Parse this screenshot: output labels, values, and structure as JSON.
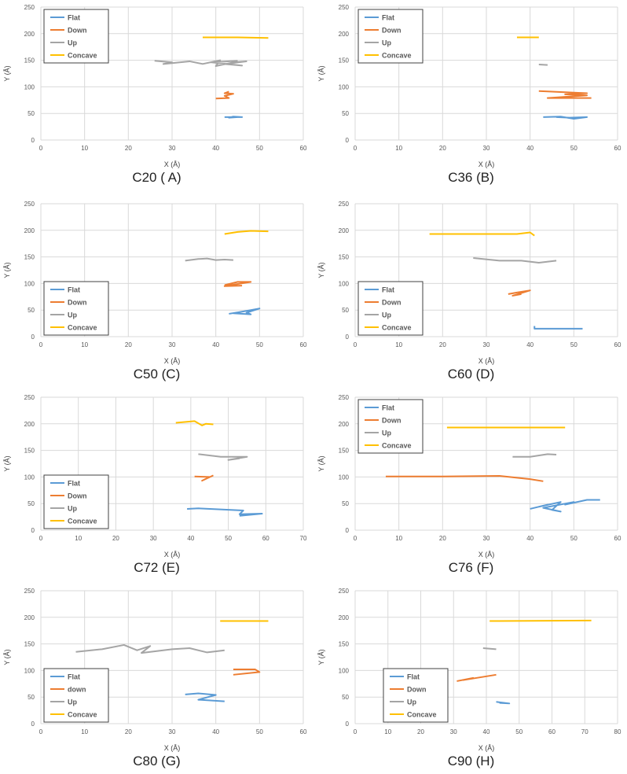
{
  "colors": {
    "Flat": "#5b9bd5",
    "Down": "#ed7d31",
    "Up": "#a5a5a5",
    "Concave": "#ffc000"
  },
  "chart_data": [
    {
      "type": "line",
      "title": "C20 ( A)",
      "xlabel": "X (Å)",
      "ylabel": "Y (Å)",
      "xlim": [
        0,
        60
      ],
      "ylim": [
        0,
        250
      ],
      "xticks": [
        0,
        10,
        20,
        30,
        40,
        50,
        60
      ],
      "yticks": [
        0,
        50,
        100,
        150,
        200,
        250
      ],
      "legend": "top-left",
      "series": [
        {
          "name": "Flat",
          "points": [
            [
              42,
              43
            ],
            [
              46,
              43
            ],
            [
              44,
              44
            ],
            [
              43,
              42
            ],
            [
              45,
              43
            ]
          ]
        },
        {
          "name": "Down",
          "points": [
            [
              40,
              78
            ],
            [
              43,
              79
            ],
            [
              42,
              83
            ],
            [
              44,
              87
            ],
            [
              42,
              88
            ],
            [
              43,
              91
            ]
          ]
        },
        {
          "name": "Up",
          "points": [
            [
              26,
              149
            ],
            [
              30,
              146
            ],
            [
              28,
              143
            ],
            [
              34,
              148
            ],
            [
              37,
              143
            ],
            [
              41,
              150
            ],
            [
              40,
              139
            ],
            [
              44,
              146
            ],
            [
              47,
              148
            ],
            [
              42,
              143
            ],
            [
              46,
              140
            ],
            [
              39,
              146
            ],
            [
              45,
              149
            ]
          ]
        },
        {
          "name": "Concave",
          "points": [
            [
              37,
              193
            ],
            [
              45,
              193
            ],
            [
              52,
              192
            ]
          ]
        }
      ]
    },
    {
      "type": "line",
      "title": "C36 (B)",
      "xlabel": "X (Å)",
      "ylabel": "Y (Å)",
      "xlim": [
        0,
        60
      ],
      "ylim": [
        0,
        250
      ],
      "xticks": [
        0,
        10,
        20,
        30,
        40,
        50,
        60
      ],
      "yticks": [
        0,
        50,
        100,
        150,
        200,
        250
      ],
      "legend": "top-left",
      "series": [
        {
          "name": "Flat",
          "points": [
            [
              43,
              43
            ],
            [
              47,
              44
            ],
            [
              50,
              40
            ],
            [
              53,
              43
            ],
            [
              49,
              42
            ],
            [
              46,
              43
            ]
          ]
        },
        {
          "name": "Down",
          "points": [
            [
              42,
              92
            ],
            [
              53,
              88
            ],
            [
              48,
              86
            ],
            [
              53,
              84
            ],
            [
              44,
              79
            ],
            [
              54,
              79
            ]
          ]
        },
        {
          "name": "Up",
          "points": [
            [
              42,
              142
            ],
            [
              44,
              141
            ]
          ]
        },
        {
          "name": "Concave",
          "points": [
            [
              37,
              193
            ],
            [
              42,
              193
            ]
          ]
        }
      ]
    },
    {
      "type": "line",
      "title": "C50 (C)",
      "xlabel": "X (Å)",
      "ylabel": "Y (Å)",
      "xlim": [
        0,
        60
      ],
      "ylim": [
        0,
        250
      ],
      "xticks": [
        0,
        10,
        20,
        30,
        40,
        50,
        60
      ],
      "yticks": [
        0,
        50,
        100,
        150,
        200,
        250
      ],
      "legend": "bottom-left",
      "series": [
        {
          "name": "Flat",
          "points": [
            [
              43,
              43
            ],
            [
              46,
              47
            ],
            [
              50,
              53
            ],
            [
              47,
              45
            ],
            [
              48,
              42
            ],
            [
              44,
              44
            ]
          ]
        },
        {
          "name": "Down",
          "points": [
            [
              42,
              97
            ],
            [
              45,
              103
            ],
            [
              48,
              103
            ],
            [
              42,
              95
            ],
            [
              46,
              96
            ]
          ]
        },
        {
          "name": "Up",
          "points": [
            [
              33,
              143
            ],
            [
              36,
              146
            ],
            [
              38,
              147
            ],
            [
              40,
              144
            ],
            [
              42,
              145
            ],
            [
              44,
              144
            ]
          ]
        },
        {
          "name": "Concave",
          "points": [
            [
              42,
              193
            ],
            [
              45,
              197
            ],
            [
              48,
              199
            ],
            [
              52,
              198
            ]
          ]
        }
      ]
    },
    {
      "type": "line",
      "title": "C60 (D)",
      "xlabel": "X (Å)",
      "ylabel": "Y (Å)",
      "xlim": [
        0,
        60
      ],
      "ylim": [
        0,
        250
      ],
      "xticks": [
        0,
        10,
        20,
        30,
        40,
        50,
        60
      ],
      "yticks": [
        0,
        50,
        100,
        150,
        200,
        250
      ],
      "legend": "bottom-left",
      "series": [
        {
          "name": "Flat",
          "points": [
            [
              41,
              20
            ],
            [
              41,
              15
            ],
            [
              52,
              15
            ]
          ]
        },
        {
          "name": "Down",
          "points": [
            [
              35,
              80
            ],
            [
              37,
              83
            ],
            [
              40,
              87
            ],
            [
              36,
              77
            ],
            [
              38,
              80
            ]
          ]
        },
        {
          "name": "Up",
          "points": [
            [
              27,
              148
            ],
            [
              33,
              143
            ],
            [
              38,
              143
            ],
            [
              42,
              139
            ],
            [
              46,
              143
            ]
          ]
        },
        {
          "name": "Concave",
          "points": [
            [
              17,
              193
            ],
            [
              37,
              193
            ],
            [
              40,
              196
            ],
            [
              41,
              190
            ]
          ]
        }
      ]
    },
    {
      "type": "line",
      "title": "C72 (E)",
      "xlabel": "X (Å)",
      "ylabel": "Y (Å)",
      "xlim": [
        0,
        70
      ],
      "ylim": [
        0,
        250
      ],
      "xticks": [
        0,
        10,
        20,
        30,
        40,
        50,
        60,
        70
      ],
      "yticks": [
        0,
        50,
        100,
        150,
        200,
        250
      ],
      "legend": "bottom-left",
      "series": [
        {
          "name": "Flat",
          "points": [
            [
              39,
              40
            ],
            [
              42,
              41
            ],
            [
              54,
              37
            ],
            [
              53,
              30
            ],
            [
              59,
              31
            ],
            [
              53,
              27
            ]
          ]
        },
        {
          "name": "Down",
          "points": [
            [
              41,
              101
            ],
            [
              45,
              100
            ],
            [
              43,
              93
            ],
            [
              46,
              103
            ]
          ]
        },
        {
          "name": "Up",
          "points": [
            [
              42,
              143
            ],
            [
              48,
              138
            ],
            [
              55,
              138
            ],
            [
              50,
              132
            ],
            [
              53,
              135
            ]
          ]
        },
        {
          "name": "Concave",
          "points": [
            [
              36,
              202
            ],
            [
              41,
              205
            ],
            [
              43,
              197
            ],
            [
              44,
              200
            ],
            [
              46,
              199
            ]
          ]
        }
      ]
    },
    {
      "type": "line",
      "title": "C76 (F)",
      "xlabel": "X (Å)",
      "ylabel": "Y (Å)",
      "xlim": [
        0,
        60
      ],
      "ylim": [
        0,
        250
      ],
      "xticks": [
        0,
        10,
        20,
        30,
        40,
        50,
        60
      ],
      "yticks": [
        0,
        50,
        100,
        150,
        200,
        250
      ],
      "legend": "top-left",
      "series": [
        {
          "name": "Flat",
          "points": [
            [
              40,
              40
            ],
            [
              44,
              48
            ],
            [
              42,
              44
            ],
            [
              47,
              53
            ],
            [
              45,
              38
            ],
            [
              47,
              35
            ],
            [
              43,
              42
            ],
            [
              50,
              53
            ],
            [
              48,
              48
            ],
            [
              53,
              57
            ],
            [
              56,
              57
            ]
          ]
        },
        {
          "name": "Down",
          "points": [
            [
              7,
              101
            ],
            [
              20,
              101
            ],
            [
              33,
              102
            ],
            [
              40,
              96
            ],
            [
              43,
              92
            ]
          ]
        },
        {
          "name": "Up",
          "points": [
            [
              36,
              138
            ],
            [
              40,
              138
            ],
            [
              44,
              143
            ],
            [
              46,
              142
            ]
          ]
        },
        {
          "name": "Concave",
          "points": [
            [
              21,
              193
            ],
            [
              48,
              193
            ]
          ]
        }
      ]
    },
    {
      "type": "line",
      "title": "C80 (G)",
      "xlabel": "X (Å)",
      "ylabel": "Y (Å)",
      "xlim": [
        0,
        60
      ],
      "ylim": [
        0,
        250
      ],
      "xticks": [
        0,
        10,
        20,
        30,
        40,
        50,
        60
      ],
      "yticks": [
        0,
        50,
        100,
        150,
        200,
        250
      ],
      "legend": "bottom-left",
      "series": [
        {
          "name": "Flat",
          "points": [
            [
              33,
              55
            ],
            [
              36,
              57
            ],
            [
              40,
              54
            ],
            [
              36,
              45
            ],
            [
              42,
              42
            ]
          ]
        },
        {
          "name": "down",
          "points": [
            [
              44,
              92
            ],
            [
              50,
              97
            ],
            [
              49,
              102
            ],
            [
              44,
              102
            ]
          ]
        },
        {
          "name": "Up",
          "points": [
            [
              8,
              135
            ],
            [
              14,
              140
            ],
            [
              19,
              148
            ],
            [
              22,
              138
            ],
            [
              25,
              146
            ],
            [
              23,
              133
            ],
            [
              30,
              140
            ],
            [
              34,
              142
            ],
            [
              38,
              134
            ],
            [
              42,
              138
            ]
          ]
        },
        {
          "name": "Concave",
          "points": [
            [
              41,
              193
            ],
            [
              52,
              193
            ]
          ]
        }
      ]
    },
    {
      "type": "line",
      "title": "C90 (H)",
      "xlabel": "X (Å)",
      "ylabel": "Y (Å)",
      "xlim": [
        0,
        80
      ],
      "ylim": [
        0,
        250
      ],
      "xticks": [
        0,
        10,
        20,
        30,
        40,
        50,
        60,
        70,
        80
      ],
      "yticks": [
        0,
        50,
        100,
        150,
        200,
        250
      ],
      "legend": "bottom-left",
      "series": [
        {
          "name": "Flat",
          "points": [
            [
              43,
              41
            ],
            [
              47,
              38
            ],
            [
              44,
              39
            ]
          ]
        },
        {
          "name": "Down",
          "points": [
            [
              31,
              80
            ],
            [
              36,
              86
            ],
            [
              33,
              82
            ],
            [
              43,
              92
            ]
          ]
        },
        {
          "name": "Up",
          "points": [
            [
              39,
              142
            ],
            [
              43,
              140
            ]
          ]
        },
        {
          "name": "Concave",
          "points": [
            [
              41,
              193
            ],
            [
              72,
              194
            ]
          ]
        }
      ]
    }
  ]
}
